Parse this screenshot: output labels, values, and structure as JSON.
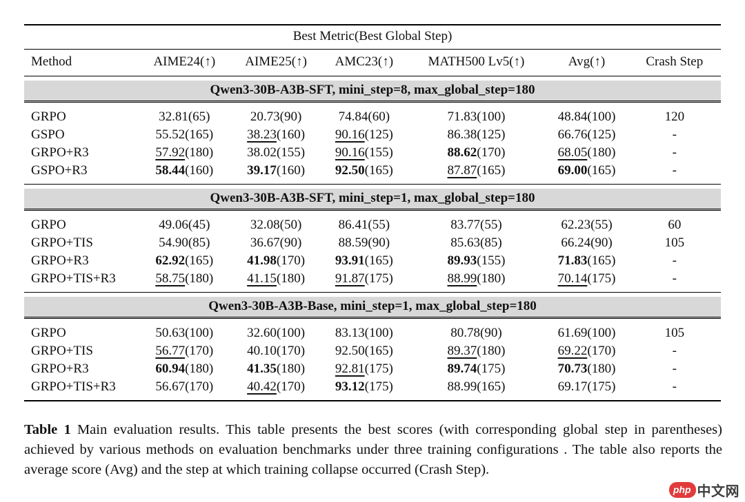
{
  "table": {
    "title": "Best Metric(Best Global Step)",
    "columns": [
      "Method",
      "AIME24(↑)",
      "AIME25(↑)",
      "AMC23(↑)",
      "MATH500 Lv5(↑)",
      "Avg(↑)",
      "Crash Step"
    ],
    "band_bg": "#d8d8d8",
    "sections": [
      {
        "header": "Qwen3-30B-A3B-SFT, mini_step=8, max_global_step=180",
        "rows": [
          {
            "method": "GRPO",
            "cells": [
              [
                "32.81",
                "(65)",
                "n"
              ],
              [
                "20.73",
                "(90)",
                "n"
              ],
              [
                "74.84",
                "(60)",
                "n"
              ],
              [
                "71.83",
                "(100)",
                "n"
              ],
              [
                "48.84",
                "(100)",
                "n"
              ]
            ],
            "crash": "120"
          },
          {
            "method": "GSPO",
            "cells": [
              [
                "55.52",
                "(165)",
                "n"
              ],
              [
                "38.23",
                "(160)",
                "u"
              ],
              [
                "90.16",
                "(125)",
                "u"
              ],
              [
                "86.38",
                "(125)",
                "n"
              ],
              [
                "66.76",
                "(125)",
                "n"
              ]
            ],
            "crash": "-"
          },
          {
            "method": "GRPO+R3",
            "cells": [
              [
                "57.92",
                "(180)",
                "u"
              ],
              [
                "38.02",
                "(155)",
                "n"
              ],
              [
                "90.16",
                "(155)",
                "u"
              ],
              [
                "88.62",
                "(170)",
                "b"
              ],
              [
                "68.05",
                "(180)",
                "u"
              ]
            ],
            "crash": "-"
          },
          {
            "method": "GSPO+R3",
            "cells": [
              [
                "58.44",
                "(160)",
                "b"
              ],
              [
                "39.17",
                "(160)",
                "b"
              ],
              [
                "92.50",
                "(165)",
                "b"
              ],
              [
                "87.87",
                "(165)",
                "u"
              ],
              [
                "69.00",
                "(165)",
                "b"
              ]
            ],
            "crash": "-"
          }
        ]
      },
      {
        "header": "Qwen3-30B-A3B-SFT, mini_step=1, max_global_step=180",
        "rows": [
          {
            "method": "GRPO",
            "cells": [
              [
                "49.06",
                "(45)",
                "n"
              ],
              [
                "32.08",
                "(50)",
                "n"
              ],
              [
                "86.41",
                "(55)",
                "n"
              ],
              [
                "83.77",
                "(55)",
                "n"
              ],
              [
                "62.23",
                "(55)",
                "n"
              ]
            ],
            "crash": "60"
          },
          {
            "method": "GRPO+TIS",
            "cells": [
              [
                "54.90",
                "(85)",
                "n"
              ],
              [
                "36.67",
                "(90)",
                "n"
              ],
              [
                "88.59",
                "(90)",
                "n"
              ],
              [
                "85.63",
                "(85)",
                "n"
              ],
              [
                "66.24",
                "(90)",
                "n"
              ]
            ],
            "crash": "105"
          },
          {
            "method": "GRPO+R3",
            "cells": [
              [
                "62.92",
                "(165)",
                "b"
              ],
              [
                "41.98",
                "(170)",
                "b"
              ],
              [
                "93.91",
                "(165)",
                "b"
              ],
              [
                "89.93",
                "(155)",
                "b"
              ],
              [
                "71.83",
                "(165)",
                "b"
              ]
            ],
            "crash": "-"
          },
          {
            "method": "GRPO+TIS+R3",
            "cells": [
              [
                "58.75",
                "(180)",
                "u"
              ],
              [
                "41.15",
                "(180)",
                "u"
              ],
              [
                "91.87",
                "(175)",
                "u"
              ],
              [
                "88.99",
                "(180)",
                "u"
              ],
              [
                "70.14",
                "(175)",
                "u"
              ]
            ],
            "crash": "-"
          }
        ]
      },
      {
        "header": "Qwen3-30B-A3B-Base, mini_step=1, max_global_step=180",
        "rows": [
          {
            "method": "GRPO",
            "cells": [
              [
                "50.63",
                "(100)",
                "n"
              ],
              [
                "32.60",
                "(100)",
                "n"
              ],
              [
                "83.13",
                "(100)",
                "n"
              ],
              [
                "80.78",
                "(90)",
                "n"
              ],
              [
                "61.69",
                "(100)",
                "n"
              ]
            ],
            "crash": "105"
          },
          {
            "method": "GRPO+TIS",
            "cells": [
              [
                "56.77",
                "(170)",
                "u"
              ],
              [
                "40.10",
                "(170)",
                "n"
              ],
              [
                "92.50",
                "(165)",
                "n"
              ],
              [
                "89.37",
                "(180)",
                "u"
              ],
              [
                "69.22",
                "(170)",
                "u"
              ]
            ],
            "crash": "-"
          },
          {
            "method": "GRPO+R3",
            "cells": [
              [
                "60.94",
                "(180)",
                "b"
              ],
              [
                "41.35",
                "(180)",
                "b"
              ],
              [
                "92.81",
                "(175)",
                "u"
              ],
              [
                "89.74",
                "(175)",
                "b"
              ],
              [
                "70.73",
                "(180)",
                "b"
              ]
            ],
            "crash": "-"
          },
          {
            "method": "GRPO+TIS+R3",
            "cells": [
              [
                "56.67",
                "(170)",
                "n"
              ],
              [
                "40.42",
                "(170)",
                "u"
              ],
              [
                "93.12",
                "(175)",
                "b"
              ],
              [
                "88.99",
                "(165)",
                "n"
              ],
              [
                "69.17",
                "(175)",
                "n"
              ]
            ],
            "crash": "-"
          }
        ]
      }
    ]
  },
  "caption": {
    "label": "Table 1",
    "text": "Main evaluation results. This table presents the best scores (with corresponding global step in parentheses) achieved by various methods on evaluation benchmarks under three training configurations . The table also reports the average score (Avg) and the step at which training collapse occurred (Crash Step)."
  },
  "watermark": {
    "badge": "php",
    "text": "中文网",
    "badge_color": "#e23b3b",
    "text_color": "#3f3f3f"
  }
}
